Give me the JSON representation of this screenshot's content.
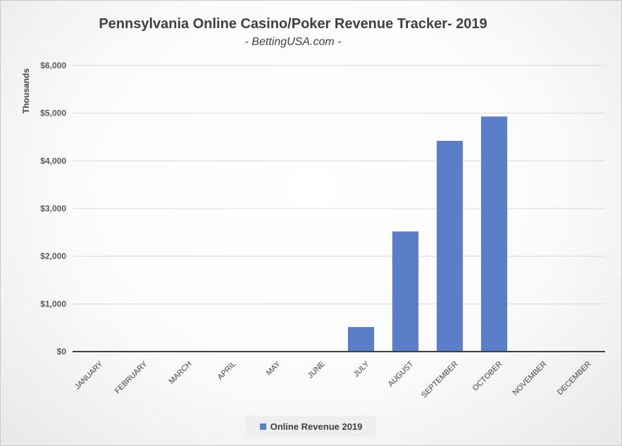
{
  "chart_data": {
    "type": "bar",
    "title": "Pennsylvania Online Casino/Poker Revenue Tracker- 2019",
    "subtitle": "- BettingUSA.com -",
    "ylabel": "Thousands",
    "xlabel": "",
    "categories": [
      "JANUARY",
      "FEBRUARY",
      "MARCH",
      "APRIL",
      "MAY",
      "JUNE",
      "JULY",
      "AUGUST",
      "SEPTEMBER",
      "OCTOBER",
      "NOVEMBER",
      "DECEMBER"
    ],
    "series": [
      {
        "name": "Online Revenue 2019",
        "values": [
          0,
          0,
          0,
          0,
          0,
          0,
          515,
          2520,
          4420,
          4930,
          0,
          0
        ],
        "color": "#5b7ec9"
      }
    ],
    "ylim": [
      0,
      6000
    ],
    "yticks": [
      0,
      1000,
      2000,
      3000,
      4000,
      5000,
      6000
    ],
    "ytick_labels": [
      "$0",
      "$1,000",
      "$2,000",
      "$3,000",
      "$4,000",
      "$5,000",
      "$6,000"
    ],
    "grid": true,
    "legend": "bottom"
  }
}
